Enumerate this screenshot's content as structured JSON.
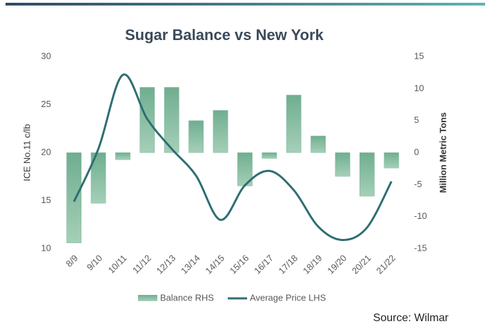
{
  "chart_data": {
    "type": "bar_line",
    "title": "Sugar Balance vs New York",
    "y_label": "ICE No.11 c/lb",
    "y2_label": "Million Metric Tons",
    "source": "Source: Wilmar",
    "categories": [
      "8/9",
      "9/10",
      "10/11",
      "11/12",
      "12/13",
      "13/14",
      "14/15",
      "15/16",
      "16/17",
      "17/18",
      "18/19",
      "19/20",
      "20/21",
      "21/22"
    ],
    "series": [
      {
        "name": "Balance RHS",
        "type": "bar",
        "axis": "y2",
        "color": "#7fb89c",
        "values": [
          -14.1,
          -7.9,
          -1.1,
          10.2,
          10.2,
          5.0,
          6.6,
          -5.2,
          -0.9,
          9.0,
          2.6,
          -3.7,
          -6.8,
          -2.4
        ]
      },
      {
        "name": "Average Price LHS",
        "type": "line",
        "axis": "y",
        "color": "#2e6e73",
        "values": [
          14.9,
          20.4,
          28.1,
          23.5,
          20.4,
          17.6,
          13.0,
          16.6,
          18.1,
          16.1,
          12.3,
          10.9,
          12.2,
          17.0
        ]
      }
    ],
    "ylim": [
      10,
      30
    ],
    "yticks": [
      10,
      15,
      20,
      25,
      30
    ],
    "y2lim": [
      -15,
      15
    ],
    "y2ticks": [
      -15,
      -10,
      -5,
      0,
      5,
      10,
      15
    ],
    "legend": "bottom"
  }
}
